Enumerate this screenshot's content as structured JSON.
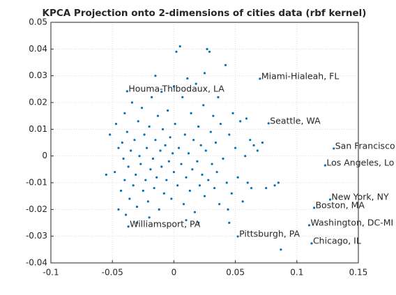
{
  "chart_data": {
    "type": "scatter",
    "title": "KPCA Projection onto 2-dimensions of cities data (rbf kernel)",
    "color": "#0072bd",
    "grid": true,
    "xlim": [
      -0.1,
      0.15
    ],
    "xticks": [
      -0.1,
      -0.05,
      0,
      0.05,
      0.1,
      0.15
    ],
    "ylim": [
      -0.04,
      0.05
    ],
    "yticks": [
      -0.04,
      -0.03,
      -0.02,
      -0.01,
      0,
      0.01,
      0.02,
      0.03,
      0.04,
      0.05
    ],
    "x": [
      -0.055,
      -0.052,
      -0.048,
      -0.047,
      -0.045,
      -0.045,
      -0.043,
      -0.042,
      -0.041,
      -0.04,
      -0.04,
      -0.039,
      -0.038,
      -0.037,
      -0.036,
      -0.035,
      -0.034,
      -0.033,
      -0.032,
      -0.031,
      -0.03,
      -0.029,
      -0.028,
      -0.027,
      -0.026,
      -0.025,
      -0.024,
      -0.023,
      -0.022,
      -0.021,
      -0.02,
      -0.019,
      -0.018,
      -0.017,
      -0.016,
      -0.015,
      -0.014,
      -0.013,
      -0.012,
      -0.011,
      -0.01,
      -0.009,
      -0.008,
      -0.007,
      -0.006,
      -0.005,
      -0.004,
      -0.003,
      -0.002,
      -0.001,
      0.0,
      0.001,
      0.002,
      0.003,
      0.004,
      0.005,
      0.006,
      0.007,
      0.008,
      0.009,
      0.01,
      0.011,
      0.012,
      0.013,
      0.014,
      0.015,
      0.016,
      0.017,
      0.018,
      0.019,
      0.02,
      0.021,
      0.022,
      0.023,
      0.024,
      0.025,
      0.026,
      0.027,
      0.028,
      0.029,
      0.03,
      0.031,
      0.032,
      0.033,
      0.034,
      0.035,
      0.036,
      0.037,
      0.038,
      0.04,
      0.042,
      0.043,
      0.044,
      0.045,
      0.047,
      0.048,
      0.05,
      0.052,
      0.054,
      0.056,
      0.058,
      0.059,
      0.06,
      0.062,
      0.063,
      0.065,
      0.068,
      0.072,
      0.075,
      0.082,
      0.085,
      0.087,
      -0.02,
      -0.01,
      0.0,
      0.01,
      -0.03,
      0.02,
      0.045,
      -0.015,
      0.025
    ],
    "y": [
      -0.007,
      0.008,
      -0.006,
      0.012,
      0.003,
      -0.02,
      -0.013,
      0.005,
      -0.001,
      0.016,
      -0.009,
      -0.022,
      0.009,
      -0.004,
      -0.016,
      0.002,
      0.02,
      -0.011,
      0.006,
      -0.007,
      -0.019,
      0.013,
      0.0,
      -0.003,
      0.018,
      -0.013,
      0.008,
      -0.009,
      0.003,
      -0.017,
      0.011,
      -0.005,
      0.022,
      -0.001,
      -0.012,
      0.006,
      -0.008,
      0.015,
      -0.02,
      0.002,
      -0.004,
      0.01,
      -0.014,
      0.004,
      -0.009,
      0.017,
      -0.002,
      0.007,
      -0.016,
      0.001,
      -0.006,
      0.012,
      0.039,
      -0.011,
      0.003,
      0.041,
      -0.003,
      0.022,
      -0.018,
      0.008,
      -0.008,
      0.029,
      0.001,
      -0.013,
      0.016,
      -0.005,
      0.006,
      -0.021,
      0.027,
      -0.002,
      0.011,
      -0.011,
      0.004,
      -0.007,
      0.019,
      -0.015,
      0.002,
      0.04,
      -0.009,
      0.039,
      0.009,
      -0.003,
      0.015,
      -0.012,
      0.005,
      -0.006,
      0.022,
      -0.018,
      0.012,
      -0.001,
      0.034,
      -0.01,
      -0.02,
      0.008,
      -0.014,
      0.016,
      0.003,
      -0.008,
      0.013,
      -0.017,
      0.0,
      0.014,
      -0.01,
      0.006,
      -0.012,
      0.004,
      0.002,
      0.005,
      -0.012,
      -0.011,
      -0.01,
      -0.035,
      -0.023,
      0.024,
      0.026,
      -0.024,
      -0.025,
      -0.025,
      -0.025,
      0.03,
      0.031
    ],
    "annotations": [
      {
        "text": "Miami-Hialeah, FL",
        "x": 0.07,
        "y": 0.0289
      },
      {
        "text": "Houma-Thibodaux, LA",
        "x": -0.038,
        "y": 0.0242
      },
      {
        "text": "Seattle, WA",
        "x": 0.077,
        "y": 0.0122
      },
      {
        "text": "San Francisco",
        "x": 0.13,
        "y": 0.0028
      },
      {
        "text": "Los Angeles, Lo",
        "x": 0.123,
        "y": -0.0035
      },
      {
        "text": "New York, NY",
        "x": 0.127,
        "y": -0.0163
      },
      {
        "text": "Boston, MA",
        "x": 0.114,
        "y": -0.0194
      },
      {
        "text": "Washington, DC-MI",
        "x": 0.11,
        "y": -0.0259
      },
      {
        "text": "Chicago, IL",
        "x": 0.112,
        "y": -0.0327
      },
      {
        "text": "Pittsburgh, PA",
        "x": 0.052,
        "y": -0.0301
      },
      {
        "text": "Williamsport, PA",
        "x": -0.037,
        "y": -0.0264
      }
    ]
  }
}
